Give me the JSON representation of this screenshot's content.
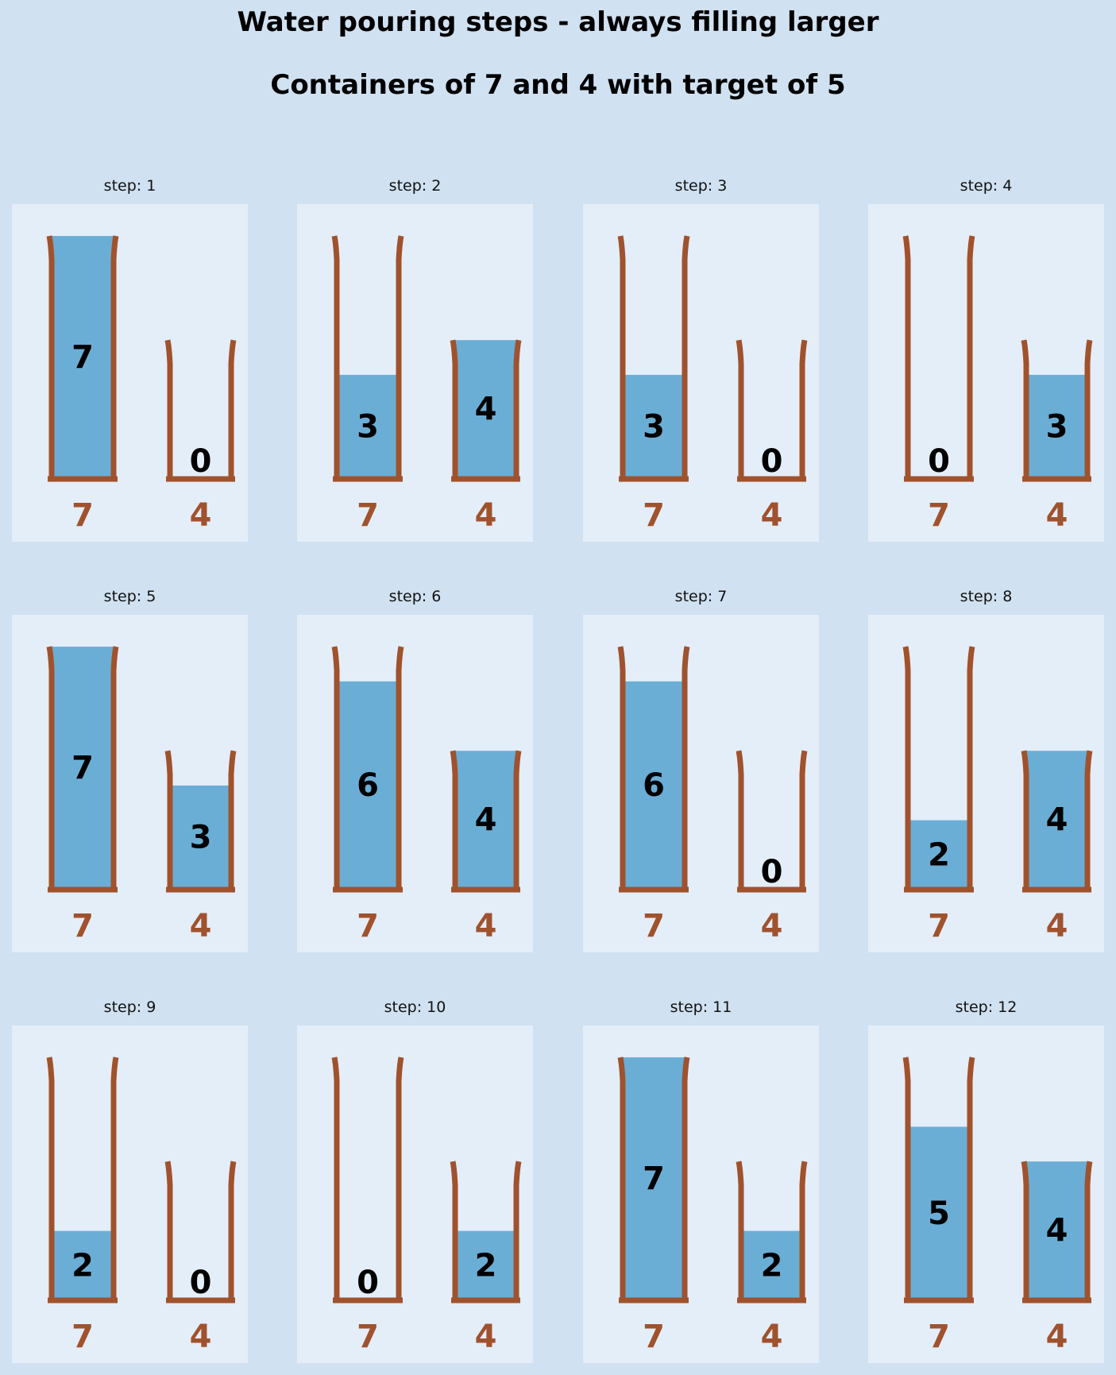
{
  "title": "Water pouring steps - always filling larger",
  "subtitle": "Containers of 7 and 4 with target of 5",
  "step_prefix": "step: ",
  "containers": [
    7,
    4
  ],
  "colors": {
    "background": "#d0e1f1",
    "panel": "#e4eef9",
    "water": "#6aaed6",
    "container": "#a0522d",
    "text": "#000000"
  },
  "steps": [
    {
      "step": 1,
      "levels": [
        7,
        0
      ]
    },
    {
      "step": 2,
      "levels": [
        3,
        4
      ]
    },
    {
      "step": 3,
      "levels": [
        3,
        0
      ]
    },
    {
      "step": 4,
      "levels": [
        0,
        3
      ]
    },
    {
      "step": 5,
      "levels": [
        7,
        3
      ]
    },
    {
      "step": 6,
      "levels": [
        6,
        4
      ]
    },
    {
      "step": 7,
      "levels": [
        6,
        0
      ]
    },
    {
      "step": 8,
      "levels": [
        2,
        4
      ]
    },
    {
      "step": 9,
      "levels": [
        2,
        0
      ]
    },
    {
      "step": 10,
      "levels": [
        0,
        2
      ]
    },
    {
      "step": 11,
      "levels": [
        7,
        2
      ]
    },
    {
      "step": 12,
      "levels": [
        5,
        4
      ]
    }
  ]
}
